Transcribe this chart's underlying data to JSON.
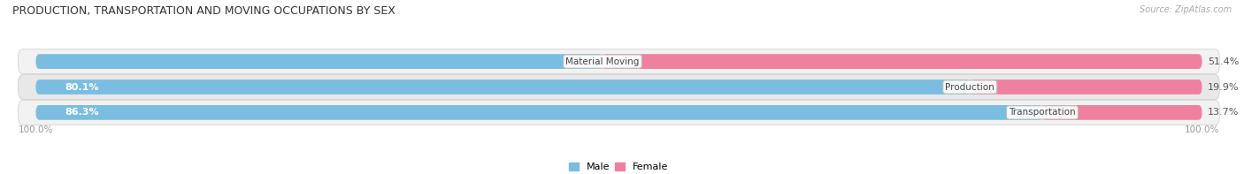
{
  "title": "PRODUCTION, TRANSPORTATION AND MOVING OCCUPATIONS BY SEX",
  "source": "Source: ZipAtlas.com",
  "categories": [
    "Transportation",
    "Production",
    "Material Moving"
  ],
  "male_pct": [
    86.3,
    80.1,
    48.6
  ],
  "female_pct": [
    13.7,
    19.9,
    51.4
  ],
  "male_color_top": "#7bbde0",
  "male_color_bot": "#aacde8",
  "female_color_top": "#f080a0",
  "female_color_bot": "#f4afc5",
  "male_label_inside": [
    true,
    true,
    false
  ],
  "row_bg_odd": "#ebebeb",
  "row_bg_even": "#e0e0e0",
  "label_color": "#555555",
  "title_color": "#333333",
  "axis_label_color": "#999999",
  "figsize": [
    14.06,
    1.97
  ],
  "dpi": 100
}
